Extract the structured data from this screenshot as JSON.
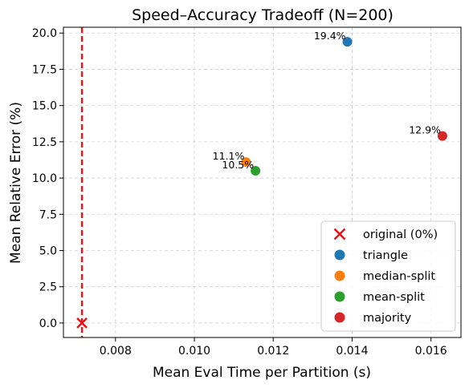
{
  "chart_data": {
    "type": "scatter",
    "title": "Speed–Accuracy Tradeoff (N=200)",
    "xlabel": "Mean Eval Time per Partition (s)",
    "ylabel": "Mean Relative Error (%)",
    "xlim": [
      0.00668,
      0.01676
    ],
    "ylim": [
      -1.0,
      20.4
    ],
    "xticks": [
      0.008,
      0.01,
      0.012,
      0.014,
      0.016
    ],
    "xtick_labels": [
      "0.008",
      "0.010",
      "0.012",
      "0.014",
      "0.016"
    ],
    "yticks": [
      0.0,
      2.5,
      5.0,
      7.5,
      10.0,
      12.5,
      15.0,
      17.5,
      20.0
    ],
    "ytick_labels": [
      "0.0",
      "2.5",
      "5.0",
      "7.5",
      "10.0",
      "12.5",
      "15.0",
      "17.5",
      "20.0"
    ],
    "grid": true,
    "legend_position": "lower-right",
    "reference_line": {
      "x": 0.00715,
      "color": "#e41a1c",
      "style": "dashed"
    },
    "series": [
      {
        "name": "original (0%)",
        "marker": "x",
        "color": "#ee1111",
        "x": 0.00715,
        "y": 0.0,
        "label": ""
      },
      {
        "name": "triangle",
        "marker": "circle",
        "color": "#1f77b4",
        "x": 0.01388,
        "y": 19.4,
        "label": "19.4%"
      },
      {
        "name": "median-split",
        "marker": "circle",
        "color": "#ff7f0e",
        "x": 0.01131,
        "y": 11.1,
        "label": "11.1%"
      },
      {
        "name": "mean-split",
        "marker": "circle",
        "color": "#2ca02c",
        "x": 0.01155,
        "y": 10.5,
        "label": "10.5%"
      },
      {
        "name": "majority",
        "marker": "circle",
        "color": "#d62728",
        "x": 0.01629,
        "y": 12.9,
        "label": "12.9%"
      }
    ]
  }
}
